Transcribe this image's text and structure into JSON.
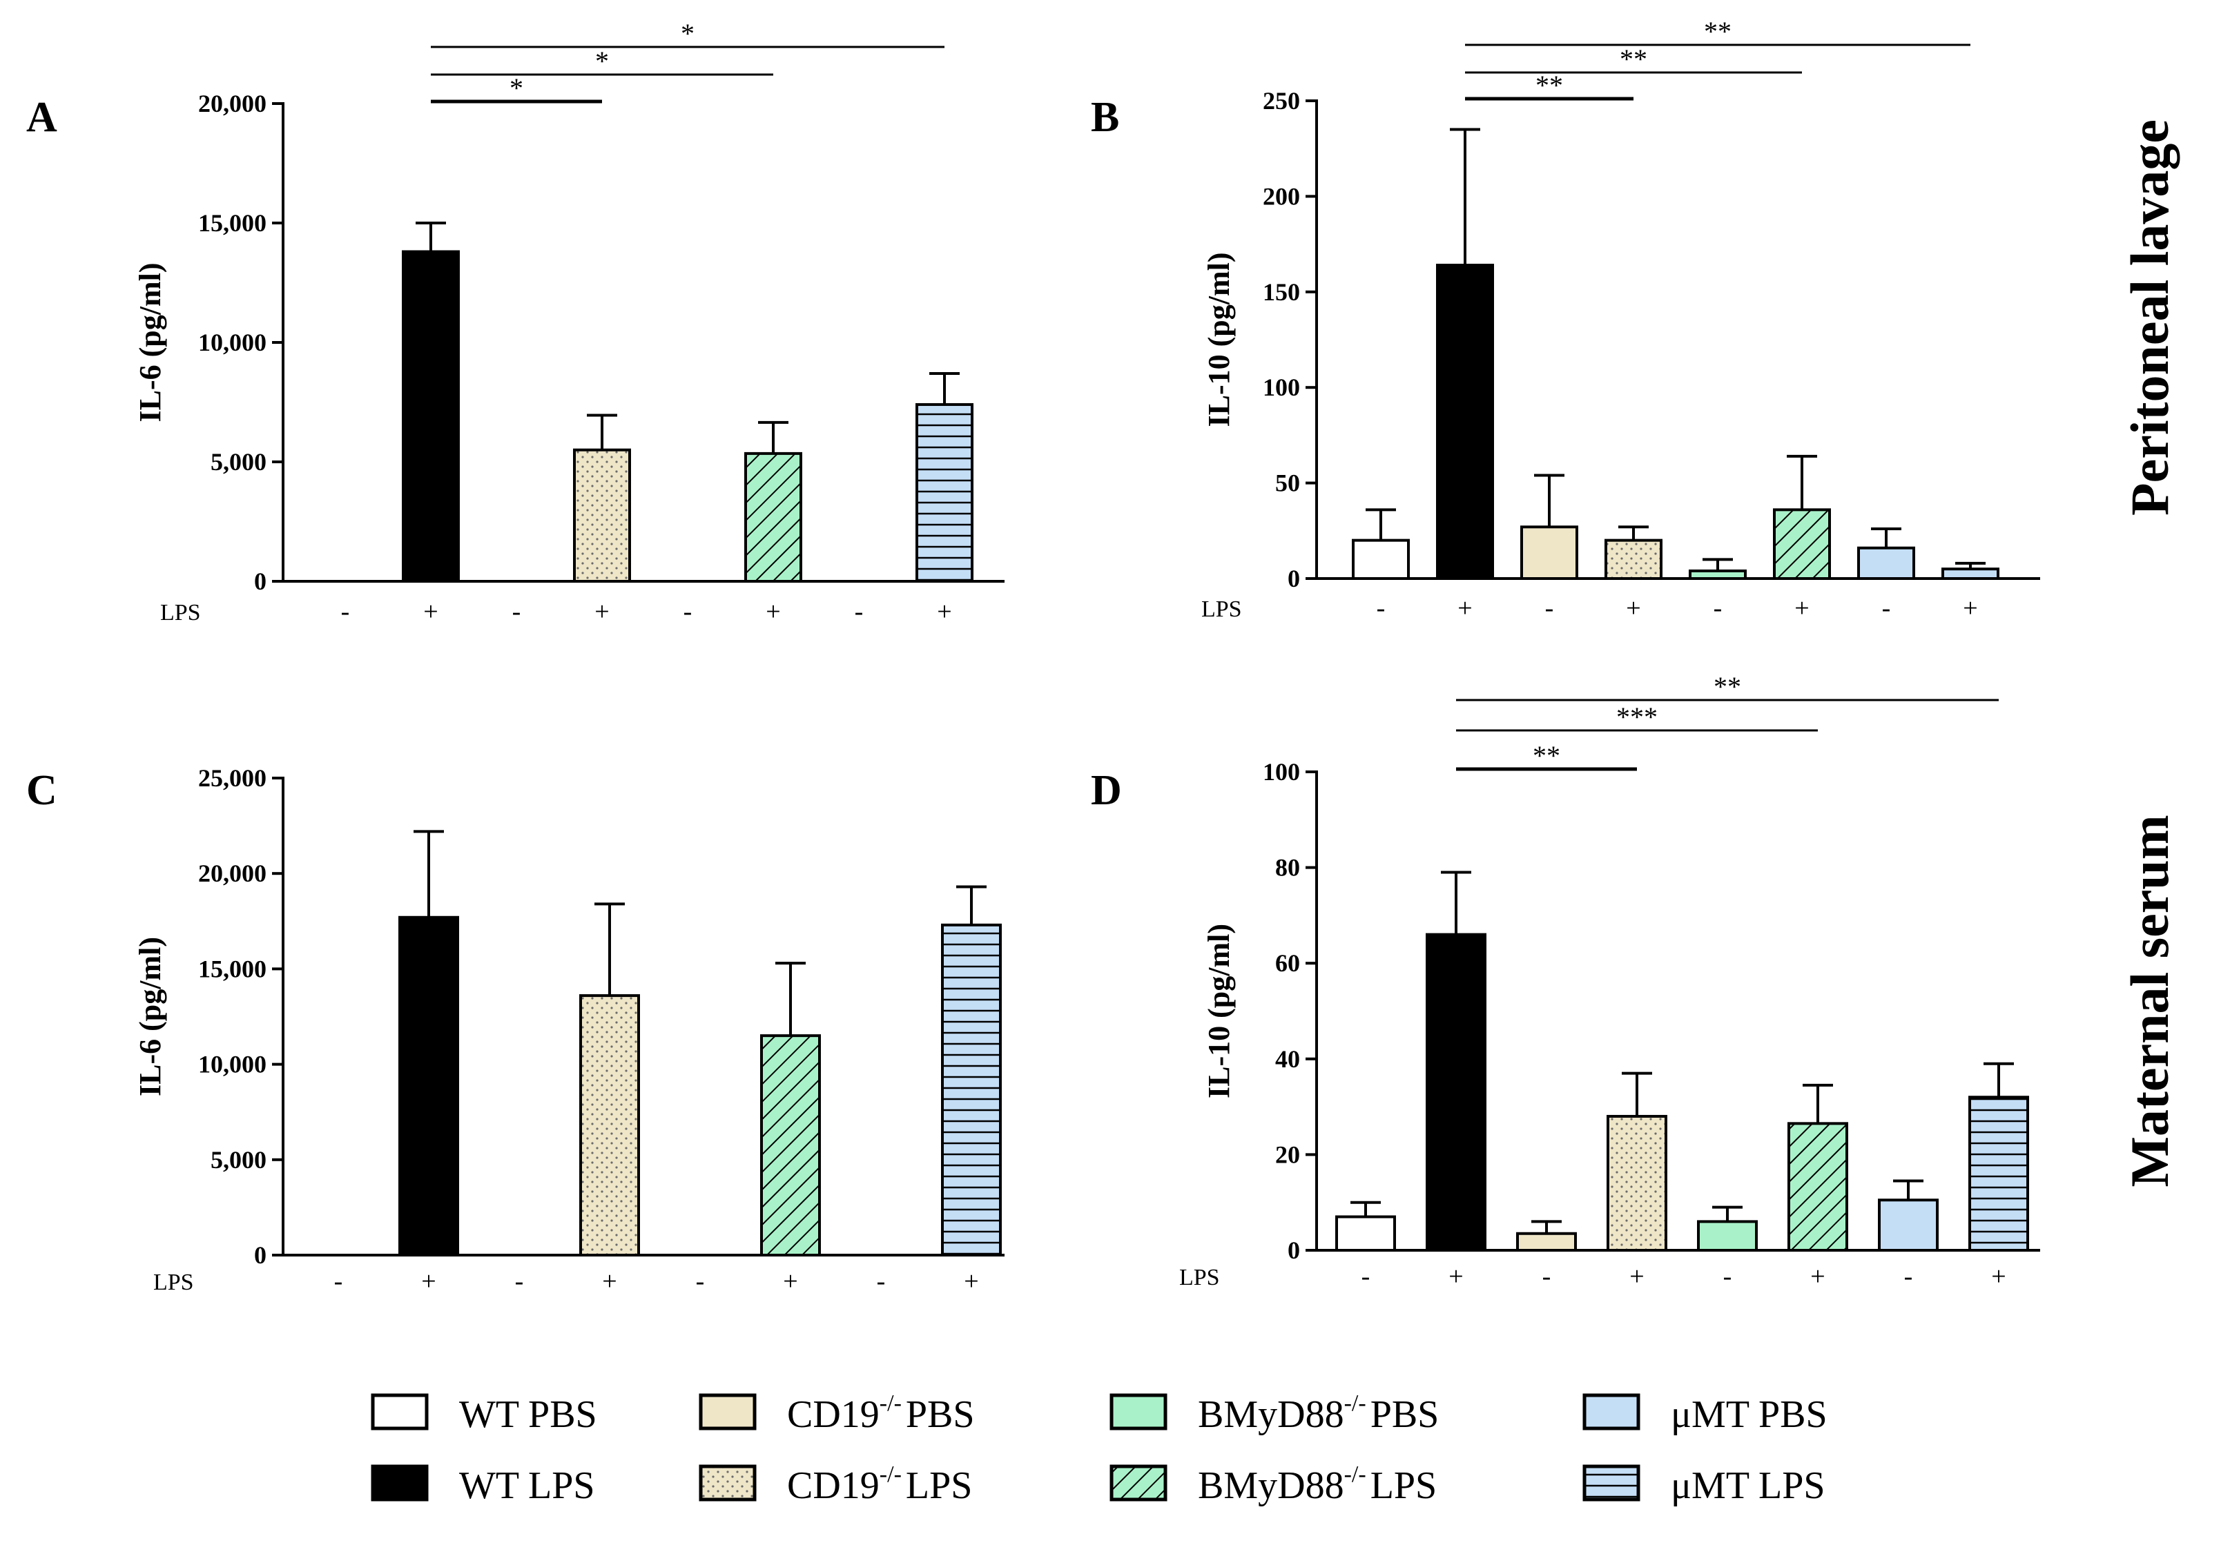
{
  "legend": [
    {
      "label": "WT PBS",
      "sup": "",
      "fill": "#ffffff",
      "pattern": "none"
    },
    {
      "label": "WT LPS",
      "sup": "",
      "fill": "#000000",
      "pattern": "none"
    },
    {
      "label": "CD19 PBS",
      "base": "CD19",
      "sup": "-/-",
      "suffix": "PBS",
      "fill": "#efe6c8",
      "pattern": "none"
    },
    {
      "label": "CD19 LPS",
      "base": "CD19",
      "sup": "-/-",
      "suffix": "LPS",
      "fill": "#efe6c8",
      "pattern": "dots"
    },
    {
      "label": "BMyD88 PBS",
      "base": "BMyD88",
      "sup": "-/-",
      "suffix": "PBS",
      "fill": "#a9f2c9",
      "pattern": "none"
    },
    {
      "label": "BMyD88 LPS",
      "base": "BMyD88",
      "sup": "-/-",
      "suffix": "LPS",
      "fill": "#a9f2c9",
      "pattern": "diag"
    },
    {
      "label": "μMT PBS",
      "sup": "",
      "fill": "#c4def6",
      "pattern": "none"
    },
    {
      "label": "μMT LPS",
      "sup": "",
      "fill": "#c4def6",
      "pattern": "hlines"
    }
  ],
  "section_labels": {
    "top": "Peritoneal lavage",
    "bottom": "Maternal serum"
  },
  "lps_row_label": "LPS",
  "lps_signs": [
    "-",
    "+",
    "-",
    "+",
    "-",
    "+",
    "-",
    "+"
  ],
  "chart_data": [
    {
      "panel": "A",
      "type": "bar",
      "ylabel": "IL-6 (pg/ml)",
      "ylim": [
        0,
        20000
      ],
      "yticks": [
        0,
        5000,
        10000,
        15000,
        20000
      ],
      "ytick_labels": [
        "0",
        "5,000",
        "10,000",
        "15,000",
        "20,000"
      ],
      "categories": [
        "WT PBS",
        "WT LPS",
        "CD19 PBS",
        "CD19 LPS",
        "BMyD88 PBS",
        "BMyD88 LPS",
        "μMT PBS",
        "μMT LPS"
      ],
      "values": [
        0,
        13800,
        0,
        5500,
        0,
        5350,
        0,
        7400
      ],
      "errors": [
        0,
        1200,
        0,
        1450,
        0,
        1300,
        0,
        1300
      ],
      "significance": [
        {
          "from": 1,
          "to": 3,
          "label": "*"
        },
        {
          "from": 1,
          "to": 5,
          "label": "*"
        },
        {
          "from": 1,
          "to": 7,
          "label": "*"
        }
      ]
    },
    {
      "panel": "B",
      "type": "bar",
      "ylabel": "IL-10 (pg/ml)",
      "ylim": [
        0,
        250
      ],
      "yticks": [
        0,
        50,
        100,
        150,
        200,
        250
      ],
      "ytick_labels": [
        "0",
        "50",
        "100",
        "150",
        "200",
        "250"
      ],
      "categories": [
        "WT PBS",
        "WT LPS",
        "CD19 PBS",
        "CD19 LPS",
        "BMyD88 PBS",
        "BMyD88 LPS",
        "μMT PBS",
        "μMT LPS"
      ],
      "values": [
        20,
        164,
        27,
        20,
        4,
        36,
        16,
        5
      ],
      "errors": [
        16,
        71,
        27,
        7,
        6,
        28,
        10,
        3
      ],
      "significance": [
        {
          "from": 1,
          "to": 3,
          "label": "**"
        },
        {
          "from": 1,
          "to": 5,
          "label": "**"
        },
        {
          "from": 1,
          "to": 7,
          "label": "**"
        }
      ]
    },
    {
      "panel": "C",
      "type": "bar",
      "ylabel": "IL-6 (pg/ml)",
      "ylim": [
        0,
        25000
      ],
      "yticks": [
        0,
        5000,
        10000,
        15000,
        20000,
        25000
      ],
      "ytick_labels": [
        "0",
        "5,000",
        "10,000",
        "15,000",
        "20,000",
        "25,000"
      ],
      "categories": [
        "WT PBS",
        "WT LPS",
        "CD19 PBS",
        "CD19 LPS",
        "BMyD88 PBS",
        "BMyD88 LPS",
        "μMT PBS",
        "μMT LPS"
      ],
      "values": [
        0,
        17700,
        0,
        13600,
        0,
        11500,
        0,
        17300
      ],
      "errors": [
        0,
        4500,
        0,
        4800,
        0,
        3800,
        0,
        2000
      ],
      "significance": []
    },
    {
      "panel": "D",
      "type": "bar",
      "ylabel": "IL-10 (pg/ml)",
      "ylim": [
        0,
        100
      ],
      "yticks": [
        0,
        20,
        40,
        60,
        80,
        100
      ],
      "ytick_labels": [
        "0",
        "20",
        "40",
        "60",
        "80",
        "100"
      ],
      "categories": [
        "WT PBS",
        "WT LPS",
        "CD19 PBS",
        "CD19 LPS",
        "BMyD88 PBS",
        "BMyD88 LPS",
        "μMT PBS",
        "μMT LPS"
      ],
      "values": [
        7,
        66,
        3.5,
        28,
        6,
        26.5,
        10.5,
        32
      ],
      "errors": [
        3,
        13,
        2.5,
        9,
        3,
        8,
        4,
        7
      ],
      "significance": [
        {
          "from": 1,
          "to": 3,
          "label": "**"
        },
        {
          "from": 1,
          "to": 5,
          "label": "***"
        },
        {
          "from": 1,
          "to": 7,
          "label": "**"
        }
      ]
    }
  ]
}
